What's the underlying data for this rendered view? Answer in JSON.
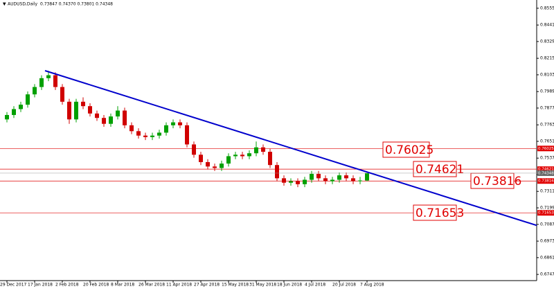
{
  "chart_data": {
    "type": "candlestick",
    "title": "AUDUSD,Daily",
    "subtitle": "0.73847 0.74370 0.73801 0.74348",
    "categories": [
      "29 Dec 2017",
      null,
      null,
      null,
      "17 Jan 2018",
      null,
      null,
      null,
      "2 Feb 2018",
      null,
      null,
      null,
      "20 Feb 2018",
      null,
      null,
      null,
      "8 Mar 2018",
      null,
      null,
      null,
      "26 Mar 2018",
      null,
      null,
      null,
      "11 Apr 2018",
      null,
      null,
      null,
      "27 Apr 2018",
      null,
      null,
      null,
      "15 May 2018",
      null,
      null,
      null,
      "31 May 2018",
      null,
      null,
      null,
      "18 Jun 2018",
      null,
      null,
      null,
      "4 Jul 2018",
      null,
      null,
      null,
      "20 Jul 2018",
      null,
      null,
      null,
      "7 Aug 2018"
    ],
    "open": [
      0.78,
      0.783,
      0.787,
      0.79,
      0.797,
      0.802,
      0.808,
      0.81,
      0.802,
      0.792,
      0.78,
      0.792,
      0.789,
      0.784,
      0.781,
      0.777,
      0.782,
      0.786,
      0.776,
      0.772,
      0.769,
      0.768,
      0.769,
      0.771,
      0.776,
      0.778,
      0.776,
      0.763,
      0.756,
      0.751,
      0.748,
      0.747,
      0.75,
      0.755,
      0.756,
      0.755,
      0.757,
      0.761,
      0.758,
      0.749,
      0.74,
      0.737,
      0.738,
      0.736,
      0.739,
      0.743,
      0.74,
      0.738,
      0.739,
      0.742,
      0.74,
      0.738,
      0.73847
    ],
    "high": [
      0.785,
      0.789,
      0.792,
      0.799,
      0.804,
      0.81,
      0.813,
      0.812,
      0.804,
      0.794,
      0.794,
      0.795,
      0.791,
      0.786,
      0.783,
      0.784,
      0.789,
      0.788,
      0.778,
      0.774,
      0.771,
      0.771,
      0.773,
      0.778,
      0.78,
      0.78,
      0.778,
      0.765,
      0.758,
      0.753,
      0.75,
      0.752,
      0.757,
      0.758,
      0.758,
      0.759,
      0.765,
      0.763,
      0.76,
      0.751,
      0.742,
      0.74,
      0.74,
      0.741,
      0.745,
      0.745,
      0.742,
      0.741,
      0.744,
      0.744,
      0.742,
      0.741,
      0.7437
    ],
    "low": [
      0.778,
      0.781,
      0.785,
      0.788,
      0.795,
      0.8,
      0.806,
      0.8,
      0.79,
      0.777,
      0.778,
      0.787,
      0.782,
      0.779,
      0.775,
      0.775,
      0.78,
      0.774,
      0.77,
      0.767,
      0.766,
      0.766,
      0.767,
      0.769,
      0.774,
      0.774,
      0.761,
      0.754,
      0.749,
      0.746,
      0.745,
      0.745,
      0.748,
      0.753,
      0.753,
      0.753,
      0.755,
      0.756,
      0.747,
      0.738,
      0.735,
      0.735,
      0.734,
      0.734,
      0.737,
      0.738,
      0.736,
      0.736,
      0.737,
      0.738,
      0.736,
      0.736,
      0.73801
    ],
    "close": [
      0.783,
      0.787,
      0.79,
      0.797,
      0.802,
      0.808,
      0.81,
      0.802,
      0.792,
      0.78,
      0.792,
      0.789,
      0.784,
      0.781,
      0.777,
      0.782,
      0.786,
      0.776,
      0.772,
      0.769,
      0.768,
      0.769,
      0.771,
      0.776,
      0.778,
      0.776,
      0.763,
      0.756,
      0.751,
      0.748,
      0.747,
      0.75,
      0.755,
      0.756,
      0.755,
      0.757,
      0.761,
      0.758,
      0.749,
      0.74,
      0.737,
      0.738,
      0.736,
      0.739,
      0.743,
      0.74,
      0.738,
      0.739,
      0.742,
      0.74,
      0.738,
      0.7385,
      0.74348
    ],
    "up_color": "#00a000",
    "down_color": "#d00000",
    "ylim": [
      0.6705,
      0.8611
    ],
    "yticks": [
      {
        "value": 0.8555,
        "label": "0.85550"
      },
      {
        "value": 0.8441,
        "label": "0.84410"
      },
      {
        "value": 0.8329,
        "label": "0.83290"
      },
      {
        "value": 0.8215,
        "label": "0.82150"
      },
      {
        "value": 0.8103,
        "label": "0.81030"
      },
      {
        "value": 0.7989,
        "label": "0.79890"
      },
      {
        "value": 0.7877,
        "label": "0.78770"
      },
      {
        "value": 0.7763,
        "label": "0.77630"
      },
      {
        "value": 0.7651,
        "label": "0.76510"
      },
      {
        "value": 0.7537,
        "label": "0.75370"
      },
      {
        "value": 0.7425,
        "label": "0.74250"
      },
      {
        "value": 0.7311,
        "label": "0.73110"
      },
      {
        "value": 0.7199,
        "label": "0.71990"
      },
      {
        "value": 0.7087,
        "label": "0.70870"
      },
      {
        "value": 0.6973,
        "label": "0.69730"
      },
      {
        "value": 0.6861,
        "label": "0.68610"
      },
      {
        "value": 0.6747,
        "label": "0.67470"
      }
    ],
    "levels": [
      0.76025,
      0.74621,
      0.73816,
      0.71653
    ],
    "level_color": "#e00000",
    "trendline": {
      "x": [
        5.5,
        76.5
      ],
      "y": [
        0.8131,
        0.708
      ],
      "color": "#0000cc"
    }
  }
}
